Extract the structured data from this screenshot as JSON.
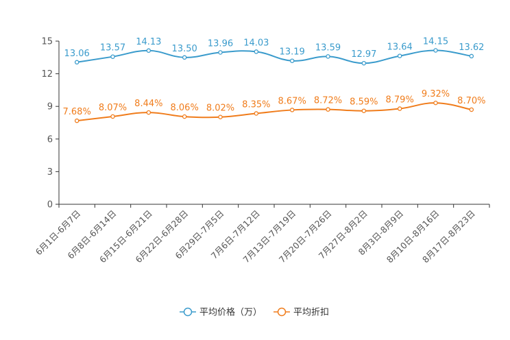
{
  "chart_data": {
    "type": "line",
    "title": "",
    "xlabel": "",
    "ylabel": "",
    "ylim": [
      0,
      15
    ],
    "yticks": [
      0,
      3,
      6,
      9,
      12,
      15
    ],
    "categories": [
      "6月1日-6月7日",
      "6月8日-6月14日",
      "6月15日-6月21日",
      "6月22日-6月28日",
      "6月29日-7月5日",
      "7月6日-7月12日",
      "7月13日-7月19日",
      "7月20日-7月26日",
      "7月27日-8月2日",
      "8月3日-8月9日",
      "8月10日-8月16日",
      "8月17日-8月23日"
    ],
    "series": [
      {
        "name": "平均价格（万）",
        "color": "#3a9bcc",
        "values": [
          13.06,
          13.57,
          14.13,
          13.5,
          13.96,
          14.03,
          13.19,
          13.59,
          12.97,
          13.64,
          14.15,
          13.62
        ],
        "labels": [
          "13.06",
          "13.57",
          "14.13",
          "13.50",
          "13.96",
          "14.03",
          "13.19",
          "13.59",
          "12.97",
          "13.64",
          "14.15",
          "13.62"
        ]
      },
      {
        "name": "平均折扣",
        "color": "#f07c1b",
        "values": [
          7.68,
          8.07,
          8.44,
          8.06,
          8.02,
          8.35,
          8.67,
          8.72,
          8.59,
          8.79,
          9.32,
          8.7
        ],
        "labels": [
          "7.68%",
          "8.07%",
          "8.44%",
          "8.06%",
          "8.02%",
          "8.35%",
          "8.67%",
          "8.72%",
          "8.59%",
          "8.79%",
          "9.32%",
          "8.70%"
        ]
      }
    ],
    "legend": "bottom-center",
    "grid": false
  }
}
